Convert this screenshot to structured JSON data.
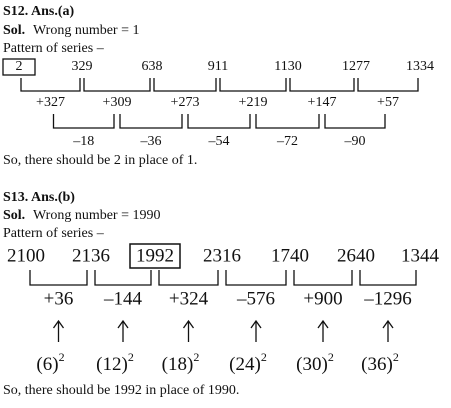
{
  "solutions": [
    {
      "heading": "S12. Ans.(a)",
      "sol_label": "Sol.",
      "sol_text": "Wrong number = 1",
      "pattern": "Pattern of series –",
      "terms": [
        2,
        329,
        638,
        911,
        1130,
        1277,
        1334
      ],
      "diffs": [
        "+327",
        "+309",
        "+273",
        "+219",
        "+147",
        "+57"
      ],
      "second_diffs": [
        "–18",
        "–36",
        "–54",
        "–72",
        "–90"
      ],
      "conclusion": "So, there should be 2 in place of 1."
    },
    {
      "heading": "S13. Ans.(b)",
      "sol_label": "Sol.",
      "sol_text": "Wrong number = 1990",
      "pattern": "Pattern of series –",
      "terms": [
        2100,
        2136,
        1992,
        2316,
        1740,
        2640,
        1344
      ],
      "diffs": [
        "+36",
        "–144",
        "+324",
        "–576",
        "+900",
        "–1296"
      ],
      "squares": [
        {
          "base": "(6)",
          "exp": "2"
        },
        {
          "base": "(12)",
          "exp": "2"
        },
        {
          "base": "(18)",
          "exp": "2"
        },
        {
          "base": "(24)",
          "exp": "2"
        },
        {
          "base": "(30)",
          "exp": "2"
        },
        {
          "base": "(36)",
          "exp": "2"
        }
      ],
      "conclusion": "So, there should be 1992 in place of 1990."
    }
  ]
}
